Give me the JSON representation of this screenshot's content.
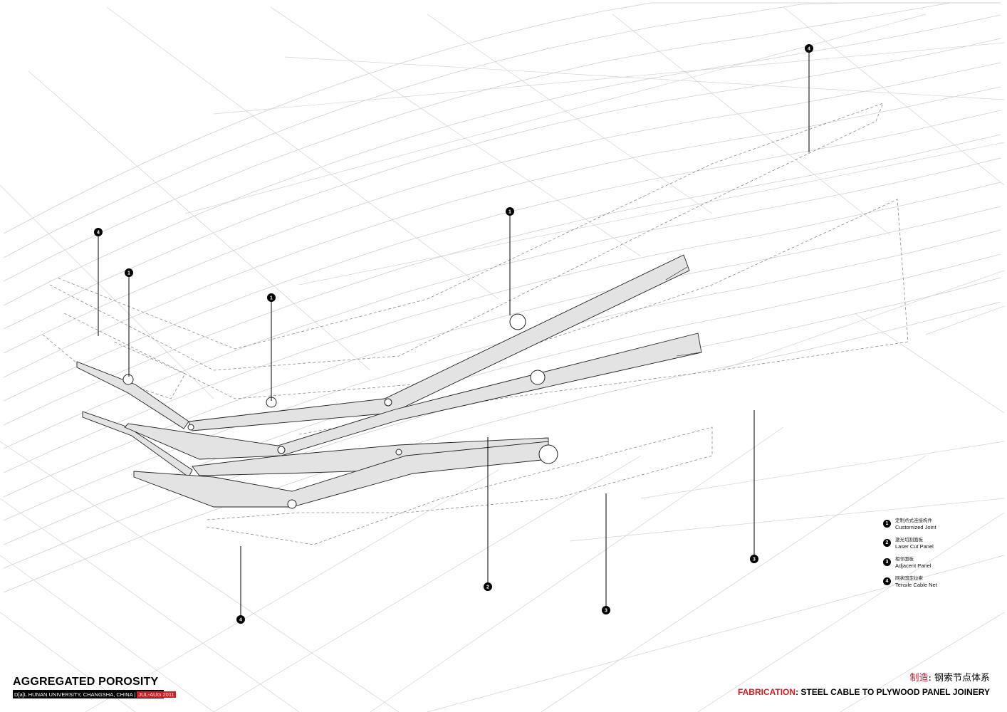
{
  "colors": {
    "accent_red": "#d71920",
    "panel_fill": "#e3e3e3",
    "net_line": "#cfcfcf",
    "ink": "#000000"
  },
  "callouts": [
    {
      "number": "1"
    },
    {
      "number": "1"
    },
    {
      "number": "1"
    },
    {
      "number": "2"
    },
    {
      "number": "3"
    },
    {
      "number": "3"
    },
    {
      "number": "4"
    },
    {
      "number": "4"
    },
    {
      "number": "4"
    }
  ],
  "legend": [
    {
      "number": "1",
      "zh": "定制点式连接构件",
      "en": "Customized Joint"
    },
    {
      "number": "2",
      "zh": "激光切割面板",
      "en": "Laser Cut Panel"
    },
    {
      "number": "3",
      "zh": "相邻面板",
      "en": "Adjacent Panel"
    },
    {
      "number": "4",
      "zh": "网状固定拉索",
      "en": "Tensile Cable Net"
    }
  ],
  "title": {
    "main": "AGGREGATED POROSITY",
    "subtitle": "D[a]L HUNAN UNIVERSITY, CHANGSHA, CHINA |",
    "date": "JUL-AUG 2011"
  },
  "fabrication": {
    "zh_prefix": "制造",
    "zh_rest": ": 钢索节点体系",
    "en_prefix": "FABRICATION",
    "en_rest": ": STEEL CABLE TO PLYWOOD PANEL JOINERY"
  }
}
